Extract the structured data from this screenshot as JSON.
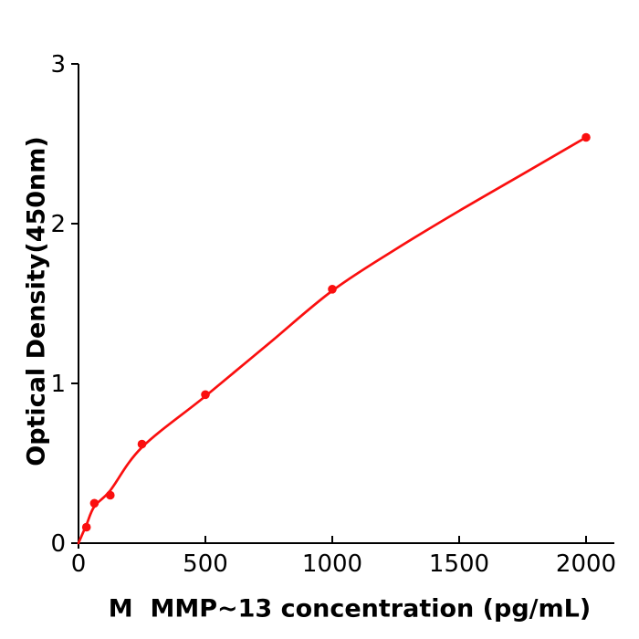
{
  "figure": {
    "background_color": "#ffffff",
    "accent_color": "#fa0f0f",
    "axis_color": "#000000",
    "text_color": "#000000"
  },
  "chart_data": {
    "type": "scatter",
    "title": "",
    "xlabel": "M  MMP~13 concentration (pg/mL)",
    "ylabel": "Optical Density(450nm)",
    "xlim": [
      0,
      2000
    ],
    "ylim": [
      0,
      3
    ],
    "x_ticks": [
      0,
      500,
      1000,
      1500,
      2000
    ],
    "x_tick_labels": [
      "0",
      "500",
      "1000",
      "1500",
      "2000"
    ],
    "y_ticks": [
      0,
      1,
      2,
      3
    ],
    "y_tick_labels": [
      "0",
      "1",
      "2",
      "3"
    ],
    "grid": false,
    "legend_position": "none",
    "series": [
      {
        "name": "standard-points",
        "type": "scatter",
        "color": "#fa0f0f",
        "marker": "circle",
        "x": [
          31.25,
          62.5,
          125,
          250,
          500,
          1000,
          2000
        ],
        "y": [
          0.1,
          0.25,
          0.3,
          0.62,
          0.93,
          1.59,
          2.54
        ]
      },
      {
        "name": "fitted-curve",
        "type": "line",
        "color": "#fa0f0f",
        "x": [
          0,
          31.25,
          62.5,
          125,
          250,
          500,
          750,
          1000,
          1250,
          1500,
          1750,
          2000
        ],
        "y": [
          0,
          0.115,
          0.23,
          0.33,
          0.6,
          0.92,
          1.25,
          1.58,
          1.84,
          2.08,
          2.31,
          2.54
        ]
      }
    ]
  }
}
